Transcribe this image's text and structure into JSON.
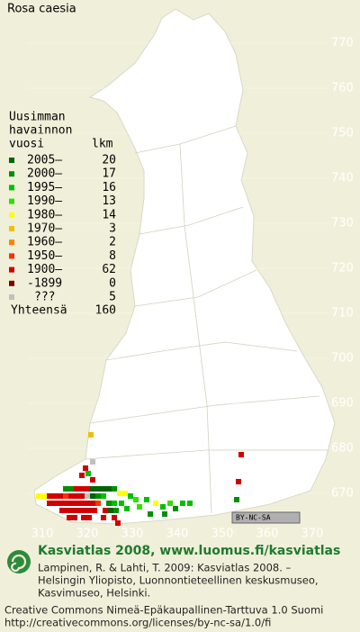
{
  "title": "Rosa caesia",
  "legend": {
    "header": [
      "Uusimman",
      "havainnon",
      "vuosi"
    ],
    "count_header": "lkm",
    "rows": [
      {
        "label": "2005–",
        "count": 20,
        "color": "#006400"
      },
      {
        "label": "2000–",
        "count": 17,
        "color": "#009000"
      },
      {
        "label": "1995–",
        "count": 16,
        "color": "#00c000"
      },
      {
        "label": "1990–",
        "count": 13,
        "color": "#30e000"
      },
      {
        "label": "1980–",
        "count": 14,
        "color": "#ffff00"
      },
      {
        "label": "1970–",
        "count": 3,
        "color": "#f0c000"
      },
      {
        "label": "1960–",
        "count": 2,
        "color": "#ff8000"
      },
      {
        "label": "1950–",
        "count": 8,
        "color": "#ff3000"
      },
      {
        "label": "1900–",
        "count": 62,
        "color": "#d00000"
      },
      {
        "label": "-1899",
        "count": 0,
        "color": "#800000"
      },
      {
        "label": "???",
        "count": 5,
        "color": "#c0c0c0"
      }
    ],
    "total": {
      "label": "Yhteensä",
      "count": 160
    }
  },
  "grid": {
    "y_labels": [
      770,
      760,
      750,
      740,
      730,
      720,
      710,
      700,
      690,
      680,
      670
    ],
    "x_labels": [
      310,
      320,
      330,
      340,
      350,
      360,
      370
    ]
  },
  "license_badge": "BY-NC-SA",
  "footer": {
    "heading": "Kasviatlas 2008, www.luomus.fi/kasviatlas",
    "citation": [
      "Lampinen, R. & Lahti, T. 2009: Kasviatlas 2008. –",
      "Helsingin Yliopisto, Luonnontieteellinen keskusmuseo,",
      "Kasvimuseo, Helsinki."
    ],
    "license": [
      "Creative Commons Nimeä-Epäkaupallinen-Tarttuva 1.0 Suomi",
      "http://creativecommons.org/licenses/by-nc-sa/1.0/fi"
    ]
  }
}
